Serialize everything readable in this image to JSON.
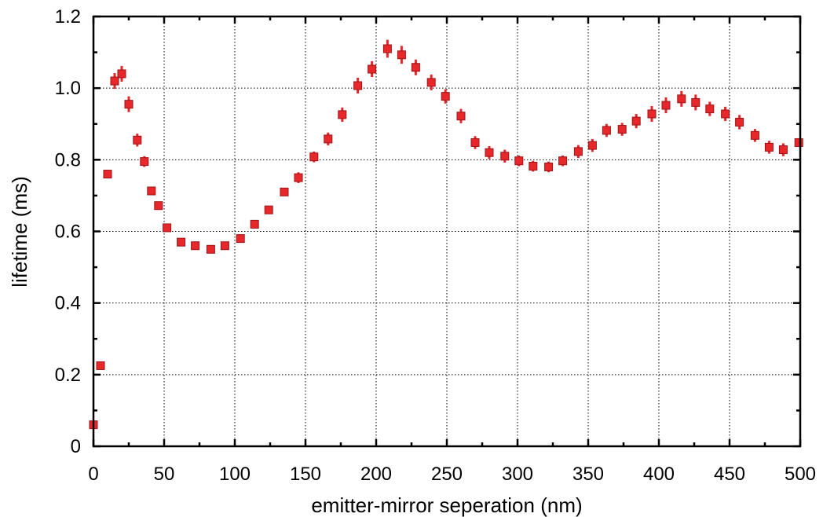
{
  "chart_data": {
    "type": "scatter",
    "title": "",
    "xlabel": "emitter-mirror seperation (nm)",
    "ylabel": "lifetime (ms)",
    "xlim": [
      0,
      500
    ],
    "ylim": [
      0,
      1.2
    ],
    "x_ticks": [
      0,
      50,
      100,
      150,
      200,
      250,
      300,
      350,
      400,
      450,
      500
    ],
    "x_tick_labels": [
      "0",
      "50",
      "100",
      "150",
      "200",
      "250",
      "300",
      "350",
      "400",
      "450",
      "500"
    ],
    "y_ticks": [
      0,
      0.2,
      0.4,
      0.6,
      0.8,
      1.0,
      1.2
    ],
    "y_tick_labels": [
      "0",
      "0.2",
      "0.4",
      "0.6",
      "0.8",
      "1.0",
      "1.2"
    ],
    "grid": true,
    "marker": "square",
    "colors": {
      "marker_fill": "#e8272a",
      "marker_edge": "#9b1518",
      "error_bar": "#e8272a"
    },
    "series": [
      {
        "x": [
          0,
          5,
          10,
          15,
          20,
          25,
          31,
          36,
          41,
          46,
          52,
          62,
          72,
          83,
          93,
          104,
          114,
          124,
          135,
          145,
          156,
          166,
          176,
          187,
          197,
          208,
          218,
          228,
          239,
          249,
          260,
          270,
          280,
          291,
          301,
          311,
          322,
          332,
          343,
          353,
          363,
          374,
          384,
          395,
          405,
          416,
          426,
          436,
          447,
          457,
          468,
          478,
          488,
          499
        ],
        "y": [
          0.06,
          0.225,
          0.76,
          1.02,
          1.04,
          0.955,
          0.855,
          0.795,
          0.713,
          0.672,
          0.61,
          0.57,
          0.56,
          0.55,
          0.56,
          0.58,
          0.62,
          0.66,
          0.71,
          0.75,
          0.808,
          0.858,
          0.926,
          1.007,
          1.053,
          1.11,
          1.093,
          1.058,
          1.016,
          0.977,
          0.922,
          0.848,
          0.82,
          0.81,
          0.797,
          0.782,
          0.78,
          0.797,
          0.823,
          0.84,
          0.882,
          0.885,
          0.908,
          0.928,
          0.952,
          0.97,
          0.96,
          0.942,
          0.928,
          0.905,
          0.868,
          0.835,
          0.828,
          0.848
        ],
        "y_err": [
          0.0,
          0.0,
          0.012,
          0.022,
          0.022,
          0.022,
          0.018,
          0.015,
          0.012,
          0.01,
          0.0,
          0.0,
          0.0,
          0.0,
          0.0,
          0.0,
          0.0,
          0.0,
          0.0,
          0.015,
          0.015,
          0.018,
          0.02,
          0.022,
          0.022,
          0.025,
          0.025,
          0.022,
          0.022,
          0.02,
          0.02,
          0.018,
          0.018,
          0.018,
          0.015,
          0.015,
          0.015,
          0.015,
          0.018,
          0.018,
          0.018,
          0.018,
          0.02,
          0.022,
          0.022,
          0.022,
          0.022,
          0.02,
          0.02,
          0.02,
          0.018,
          0.018,
          0.018,
          0.0
        ]
      }
    ]
  }
}
